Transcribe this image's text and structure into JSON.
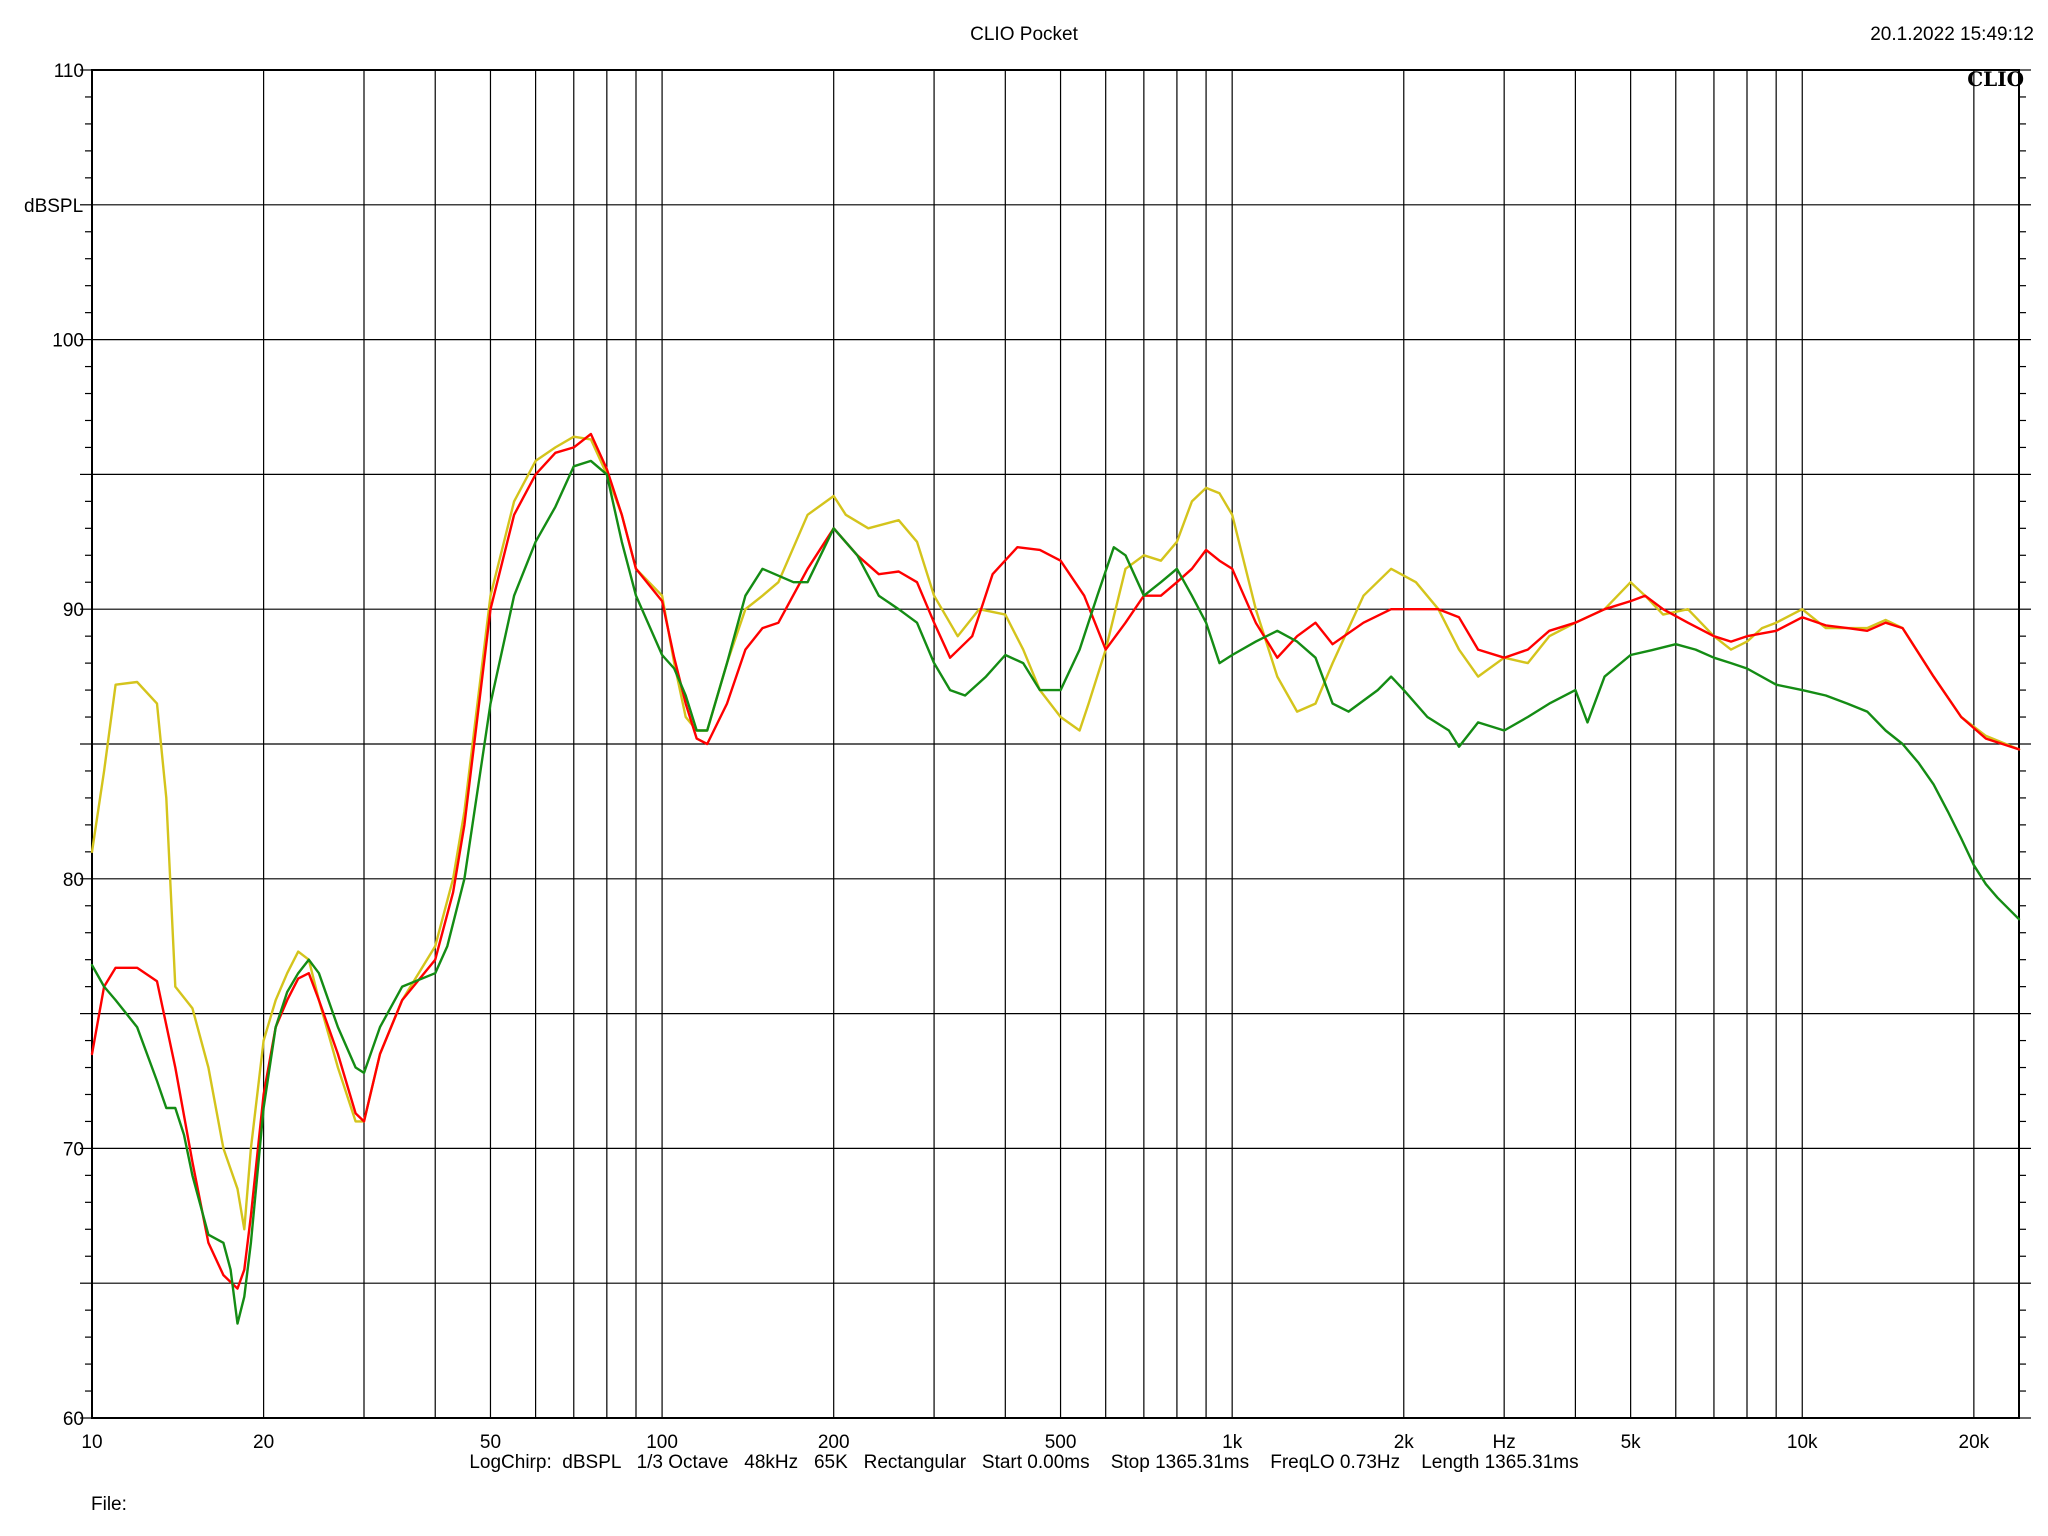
{
  "header": {
    "title": "CLIO Pocket",
    "timestamp": "20.1.2022 15:49:12"
  },
  "footer": {
    "settings": "LogChirp:  dBSPL   1/3 Octave   48kHz   65K   Rectangular   Start 0.00ms    Stop 1365.31ms    FreqLO 0.73Hz    Length 1365.31ms",
    "file_label": "File:"
  },
  "brand": "CLIO",
  "chart_data": {
    "type": "line",
    "title": "CLIO Pocket",
    "xlabel": "Hz",
    "ylabel": "dBSPL",
    "x_scale": "log",
    "xlim": [
      10,
      24000
    ],
    "ylim": [
      60,
      110
    ],
    "grid": true,
    "x_ticks": [
      10,
      20,
      50,
      100,
      200,
      500,
      1000,
      2000,
      5000,
      10000,
      20000
    ],
    "x_tick_labels": [
      "10",
      "20",
      "50",
      "100",
      "200",
      "500",
      "1k",
      "2k",
      "5k",
      "10k",
      "20k"
    ],
    "y_ticks": [
      60,
      70,
      80,
      90,
      100,
      110
    ],
    "y_tick_labels": [
      "60",
      "70",
      "80",
      "90",
      "100",
      "110"
    ],
    "series": [
      {
        "color": "#d4c41c",
        "points": [
          [
            10,
            81
          ],
          [
            10.5,
            84
          ],
          [
            11,
            87.2
          ],
          [
            12,
            87.3
          ],
          [
            13,
            86.5
          ],
          [
            13.5,
            83
          ],
          [
            14,
            76
          ],
          [
            15,
            75.2
          ],
          [
            16,
            73
          ],
          [
            17,
            70
          ],
          [
            18,
            68.5
          ],
          [
            18.5,
            67
          ],
          [
            19,
            70
          ],
          [
            20,
            74
          ],
          [
            21,
            75.5
          ],
          [
            22,
            76.5
          ],
          [
            23,
            77.3
          ],
          [
            24,
            77
          ],
          [
            25,
            75.5
          ],
          [
            27,
            73
          ],
          [
            29,
            71
          ],
          [
            30,
            71
          ],
          [
            32,
            73.5
          ],
          [
            35,
            75.5
          ],
          [
            40,
            77.5
          ],
          [
            43,
            80
          ],
          [
            45,
            82.5
          ],
          [
            50,
            90.5
          ],
          [
            55,
            94
          ],
          [
            60,
            95.5
          ],
          [
            65,
            96
          ],
          [
            70,
            96.4
          ],
          [
            75,
            96.3
          ],
          [
            80,
            95
          ],
          [
            85,
            93.5
          ],
          [
            90,
            91.5
          ],
          [
            100,
            90.5
          ],
          [
            105,
            88
          ],
          [
            110,
            86
          ],
          [
            115,
            85.5
          ],
          [
            120,
            85.5
          ],
          [
            130,
            88
          ],
          [
            140,
            90
          ],
          [
            150,
            90.5
          ],
          [
            160,
            91
          ],
          [
            180,
            93.5
          ],
          [
            200,
            94.2
          ],
          [
            210,
            93.5
          ],
          [
            230,
            93
          ],
          [
            260,
            93.3
          ],
          [
            280,
            92.5
          ],
          [
            300,
            90.5
          ],
          [
            330,
            89
          ],
          [
            360,
            90
          ],
          [
            400,
            89.8
          ],
          [
            430,
            88.5
          ],
          [
            460,
            87
          ],
          [
            500,
            86
          ],
          [
            540,
            85.5
          ],
          [
            560,
            86.5
          ],
          [
            600,
            88.5
          ],
          [
            650,
            91.5
          ],
          [
            700,
            92
          ],
          [
            750,
            91.8
          ],
          [
            800,
            92.5
          ],
          [
            850,
            94
          ],
          [
            900,
            94.5
          ],
          [
            950,
            94.3
          ],
          [
            1000,
            93.5
          ],
          [
            1100,
            90
          ],
          [
            1200,
            87.5
          ],
          [
            1300,
            86.2
          ],
          [
            1400,
            86.5
          ],
          [
            1500,
            88
          ],
          [
            1700,
            90.5
          ],
          [
            1900,
            91.5
          ],
          [
            2100,
            91
          ],
          [
            2300,
            90
          ],
          [
            2500,
            88.5
          ],
          [
            2700,
            87.5
          ],
          [
            3000,
            88.2
          ],
          [
            3300,
            88
          ],
          [
            3600,
            89
          ],
          [
            4000,
            89.5
          ],
          [
            4500,
            90
          ],
          [
            5000,
            91
          ],
          [
            5300,
            90.5
          ],
          [
            5700,
            89.8
          ],
          [
            6300,
            90
          ],
          [
            7000,
            89
          ],
          [
            7500,
            88.5
          ],
          [
            8000,
            88.8
          ],
          [
            8500,
            89.3
          ],
          [
            9000,
            89.5
          ],
          [
            10000,
            90
          ],
          [
            11000,
            89.3
          ],
          [
            12000,
            89.3
          ],
          [
            13000,
            89.3
          ],
          [
            14000,
            89.6
          ],
          [
            15000,
            89.3
          ],
          [
            17000,
            87.5
          ],
          [
            19000,
            86
          ],
          [
            21000,
            85.3
          ],
          [
            24000,
            84.8
          ]
        ]
      },
      {
        "color": "#ff0000",
        "points": [
          [
            10,
            73.5
          ],
          [
            10.5,
            76
          ],
          [
            11,
            76.7
          ],
          [
            12,
            76.7
          ],
          [
            13,
            76.2
          ],
          [
            14,
            73
          ],
          [
            15,
            69.5
          ],
          [
            16,
            66.5
          ],
          [
            17,
            65.3
          ],
          [
            18,
            64.8
          ],
          [
            18.5,
            65.5
          ],
          [
            19,
            67.5
          ],
          [
            20,
            72
          ],
          [
            21,
            74.5
          ],
          [
            22,
            75.5
          ],
          [
            23,
            76.3
          ],
          [
            24,
            76.5
          ],
          [
            25,
            75.5
          ],
          [
            27,
            73.5
          ],
          [
            29,
            71.3
          ],
          [
            30,
            71
          ],
          [
            32,
            73.5
          ],
          [
            35,
            75.5
          ],
          [
            40,
            77
          ],
          [
            43,
            79.5
          ],
          [
            45,
            82
          ],
          [
            50,
            90
          ],
          [
            55,
            93.5
          ],
          [
            60,
            95
          ],
          [
            65,
            95.8
          ],
          [
            70,
            96
          ],
          [
            75,
            96.5
          ],
          [
            80,
            95.2
          ],
          [
            85,
            93.5
          ],
          [
            90,
            91.5
          ],
          [
            100,
            90.3
          ],
          [
            105,
            88.2
          ],
          [
            110,
            86.5
          ],
          [
            115,
            85.2
          ],
          [
            120,
            85
          ],
          [
            130,
            86.5
          ],
          [
            140,
            88.5
          ],
          [
            150,
            89.3
          ],
          [
            160,
            89.5
          ],
          [
            180,
            91.5
          ],
          [
            200,
            93
          ],
          [
            220,
            92
          ],
          [
            240,
            91.3
          ],
          [
            260,
            91.4
          ],
          [
            280,
            91
          ],
          [
            300,
            89.5
          ],
          [
            320,
            88.2
          ],
          [
            350,
            89
          ],
          [
            380,
            91.3
          ],
          [
            420,
            92.3
          ],
          [
            460,
            92.2
          ],
          [
            500,
            91.8
          ],
          [
            550,
            90.5
          ],
          [
            600,
            88.5
          ],
          [
            650,
            89.5
          ],
          [
            700,
            90.5
          ],
          [
            750,
            90.5
          ],
          [
            800,
            91
          ],
          [
            850,
            91.5
          ],
          [
            900,
            92.2
          ],
          [
            950,
            91.8
          ],
          [
            1000,
            91.5
          ],
          [
            1100,
            89.5
          ],
          [
            1200,
            88.2
          ],
          [
            1300,
            89
          ],
          [
            1400,
            89.5
          ],
          [
            1500,
            88.7
          ],
          [
            1700,
            89.5
          ],
          [
            1900,
            90
          ],
          [
            2100,
            90
          ],
          [
            2300,
            90
          ],
          [
            2500,
            89.7
          ],
          [
            2700,
            88.5
          ],
          [
            3000,
            88.2
          ],
          [
            3300,
            88.5
          ],
          [
            3600,
            89.2
          ],
          [
            4000,
            89.5
          ],
          [
            4500,
            90
          ],
          [
            5000,
            90.3
          ],
          [
            5300,
            90.5
          ],
          [
            5700,
            90
          ],
          [
            6300,
            89.5
          ],
          [
            7000,
            89
          ],
          [
            7500,
            88.8
          ],
          [
            8000,
            89
          ],
          [
            9000,
            89.2
          ],
          [
            10000,
            89.7
          ],
          [
            11000,
            89.4
          ],
          [
            12000,
            89.3
          ],
          [
            13000,
            89.2
          ],
          [
            14000,
            89.5
          ],
          [
            15000,
            89.3
          ],
          [
            17000,
            87.5
          ],
          [
            19000,
            86
          ],
          [
            21000,
            85.2
          ],
          [
            24000,
            84.8
          ]
        ]
      },
      {
        "color": "#148c14",
        "points": [
          [
            10,
            76.8
          ],
          [
            10.5,
            76
          ],
          [
            11,
            75.5
          ],
          [
            12,
            74.5
          ],
          [
            13,
            72.5
          ],
          [
            13.5,
            71.5
          ],
          [
            14,
            71.5
          ],
          [
            14.5,
            70.5
          ],
          [
            15,
            69
          ],
          [
            16,
            66.8
          ],
          [
            17,
            66.5
          ],
          [
            17.5,
            65.5
          ],
          [
            18,
            63.5
          ],
          [
            18.5,
            64.5
          ],
          [
            19,
            66.5
          ],
          [
            20,
            71.5
          ],
          [
            21,
            74.5
          ],
          [
            22,
            75.8
          ],
          [
            23,
            76.5
          ],
          [
            24,
            77
          ],
          [
            25,
            76.5
          ],
          [
            27,
            74.5
          ],
          [
            29,
            73
          ],
          [
            30,
            72.8
          ],
          [
            32,
            74.5
          ],
          [
            35,
            76
          ],
          [
            40,
            76.5
          ],
          [
            42,
            77.5
          ],
          [
            45,
            80
          ],
          [
            50,
            86.5
          ],
          [
            55,
            90.5
          ],
          [
            60,
            92.5
          ],
          [
            65,
            93.8
          ],
          [
            70,
            95.3
          ],
          [
            75,
            95.5
          ],
          [
            80,
            95
          ],
          [
            85,
            92.5
          ],
          [
            90,
            90.5
          ],
          [
            100,
            88.3
          ],
          [
            105,
            87.8
          ],
          [
            110,
            86.8
          ],
          [
            115,
            85.5
          ],
          [
            120,
            85.5
          ],
          [
            130,
            88
          ],
          [
            140,
            90.5
          ],
          [
            150,
            91.5
          ],
          [
            170,
            91
          ],
          [
            180,
            91
          ],
          [
            200,
            93
          ],
          [
            220,
            92
          ],
          [
            240,
            90.5
          ],
          [
            260,
            90
          ],
          [
            280,
            89.5
          ],
          [
            300,
            88
          ],
          [
            320,
            87
          ],
          [
            340,
            86.8
          ],
          [
            370,
            87.5
          ],
          [
            400,
            88.3
          ],
          [
            430,
            88
          ],
          [
            460,
            87
          ],
          [
            500,
            87
          ],
          [
            540,
            88.5
          ],
          [
            580,
            90.5
          ],
          [
            620,
            92.3
          ],
          [
            650,
            92
          ],
          [
            700,
            90.5
          ],
          [
            750,
            91
          ],
          [
            800,
            91.5
          ],
          [
            850,
            90.5
          ],
          [
            900,
            89.5
          ],
          [
            950,
            88
          ],
          [
            1000,
            88.3
          ],
          [
            1100,
            88.8
          ],
          [
            1200,
            89.2
          ],
          [
            1300,
            88.8
          ],
          [
            1400,
            88.2
          ],
          [
            1500,
            86.5
          ],
          [
            1600,
            86.2
          ],
          [
            1800,
            87
          ],
          [
            1900,
            87.5
          ],
          [
            2000,
            87
          ],
          [
            2200,
            86
          ],
          [
            2400,
            85.5
          ],
          [
            2500,
            84.9
          ],
          [
            2700,
            85.8
          ],
          [
            3000,
            85.5
          ],
          [
            3300,
            86
          ],
          [
            3600,
            86.5
          ],
          [
            4000,
            87
          ],
          [
            4200,
            85.8
          ],
          [
            4500,
            87.5
          ],
          [
            5000,
            88.3
          ],
          [
            5500,
            88.5
          ],
          [
            6000,
            88.7
          ],
          [
            6500,
            88.5
          ],
          [
            7000,
            88.2
          ],
          [
            7500,
            88
          ],
          [
            8000,
            87.8
          ],
          [
            9000,
            87.2
          ],
          [
            10000,
            87
          ],
          [
            11000,
            86.8
          ],
          [
            12000,
            86.5
          ],
          [
            13000,
            86.2
          ],
          [
            14000,
            85.5
          ],
          [
            15000,
            85
          ],
          [
            16000,
            84.3
          ],
          [
            17000,
            83.5
          ],
          [
            18000,
            82.5
          ],
          [
            19000,
            81.5
          ],
          [
            20000,
            80.5
          ],
          [
            21000,
            79.8
          ],
          [
            22000,
            79.3
          ],
          [
            24000,
            78.5
          ]
        ]
      }
    ]
  }
}
